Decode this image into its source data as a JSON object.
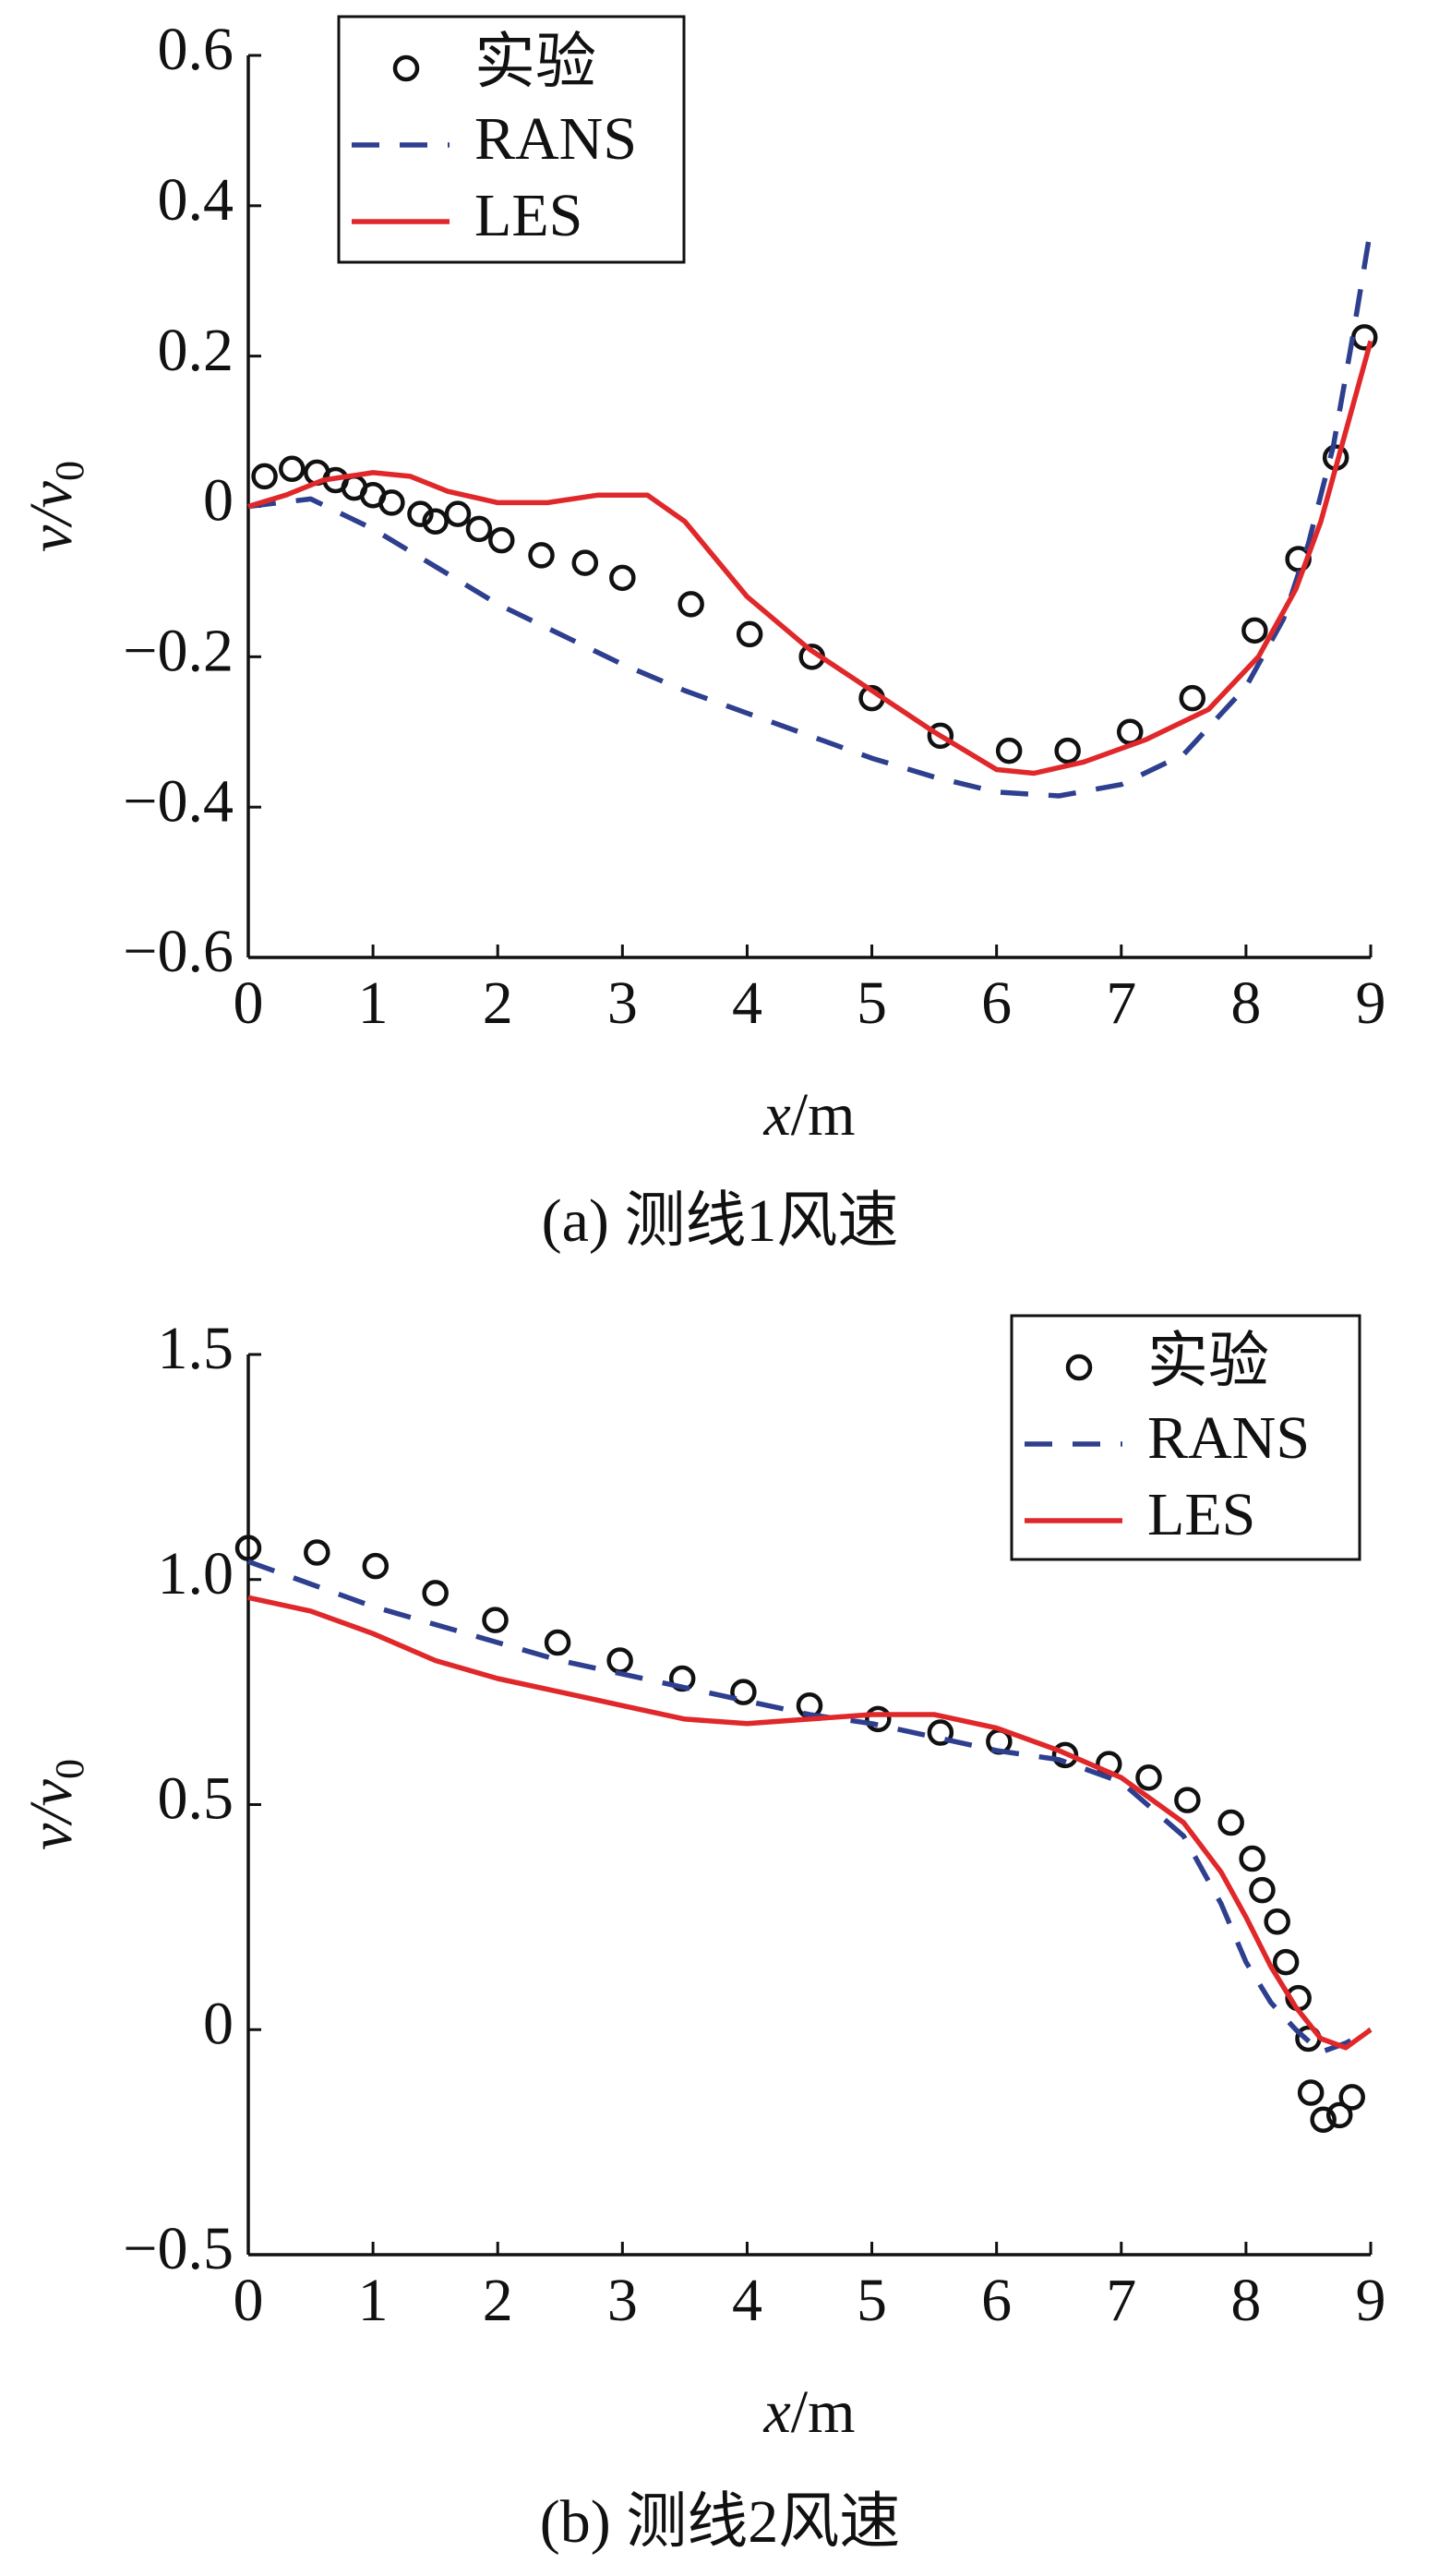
{
  "chart_data": [
    {
      "type": "line",
      "caption": "(a) 测线1风速",
      "xlabel": "x/m",
      "ylabel": "v/v0",
      "xlim": [
        0,
        9
      ],
      "xticks": [
        0,
        1,
        2,
        3,
        4,
        5,
        6,
        7,
        8,
        9
      ],
      "ylim": [
        -0.6,
        0.6
      ],
      "yticks": [
        {
          "value": -0.6,
          "label": "−0.6"
        },
        {
          "value": -0.4,
          "label": "−0.4"
        },
        {
          "value": -0.2,
          "label": "−0.2"
        },
        0,
        0.2,
        0.4,
        0.6
      ],
      "legend": "upper left",
      "series": [
        {
          "name": "实验",
          "kind": "scatter",
          "color": "#111111",
          "x": [
            0.13,
            0.35,
            0.55,
            0.7,
            0.85,
            1.0,
            1.15,
            1.38,
            1.5,
            1.68,
            1.85,
            2.03,
            2.35,
            2.7,
            3.0,
            3.55,
            4.02,
            4.52,
            5.0,
            5.55,
            6.1,
            6.57,
            7.07,
            7.57,
            8.07,
            8.42,
            8.72,
            8.95
          ],
          "values": [
            0.04,
            0.05,
            0.045,
            0.035,
            0.025,
            0.015,
            0.005,
            -0.01,
            -0.02,
            -0.01,
            -0.03,
            -0.045,
            -0.065,
            -0.075,
            -0.095,
            -0.13,
            -0.17,
            -0.2,
            -0.255,
            -0.305,
            -0.325,
            -0.325,
            -0.3,
            -0.255,
            -0.165,
            -0.07,
            0.065,
            0.225
          ]
        },
        {
          "name": "RANS",
          "kind": "dashed",
          "color": "#2e3f8f",
          "x": [
            0,
            0.5,
            1,
            1.5,
            2,
            2.5,
            3,
            3.5,
            4,
            4.5,
            5,
            5.5,
            6,
            6.5,
            7,
            7.5,
            8,
            8.3,
            8.5,
            8.7,
            8.85,
            9
          ],
          "values": [
            0,
            0.01,
            -0.03,
            -0.08,
            -0.13,
            -0.17,
            -0.21,
            -0.245,
            -0.275,
            -0.305,
            -0.335,
            -0.36,
            -0.38,
            -0.385,
            -0.37,
            -0.33,
            -0.24,
            -0.15,
            -0.05,
            0.08,
            0.22,
            0.37
          ]
        },
        {
          "name": "LES",
          "kind": "solid",
          "color": "#e0282a",
          "x": [
            0,
            0.3,
            0.6,
            1,
            1.3,
            1.6,
            2,
            2.4,
            2.8,
            3.2,
            3.5,
            4,
            4.5,
            5,
            5.5,
            6,
            6.3,
            6.7,
            7.2,
            7.7,
            8.1,
            8.4,
            8.6,
            8.8,
            9
          ],
          "values": [
            0,
            0.015,
            0.035,
            0.045,
            0.04,
            0.02,
            0.005,
            0.005,
            0.015,
            0.015,
            -0.02,
            -0.12,
            -0.19,
            -0.245,
            -0.3,
            -0.35,
            -0.355,
            -0.34,
            -0.31,
            -0.27,
            -0.2,
            -0.11,
            -0.02,
            0.1,
            0.22
          ]
        }
      ]
    },
    {
      "type": "line",
      "caption": "(b) 测线2风速",
      "xlabel": "x/m",
      "ylabel": "v/v0",
      "xlim": [
        0,
        9
      ],
      "xticks": [
        0,
        1,
        2,
        3,
        4,
        5,
        6,
        7,
        8,
        9
      ],
      "ylim": [
        -0.5,
        1.5
      ],
      "yticks": [
        {
          "value": -0.5,
          "label": "−0.5"
        },
        0,
        0.5,
        {
          "value": 1,
          "label": "1.0"
        },
        1.5
      ],
      "legend": "upper right",
      "series": [
        {
          "name": "实验",
          "kind": "scatter",
          "color": "#111111",
          "x": [
            0.0,
            0.55,
            1.02,
            1.5,
            1.98,
            2.48,
            2.98,
            3.48,
            3.97,
            4.5,
            5.05,
            5.55,
            6.02,
            6.55,
            6.9,
            7.22,
            7.53,
            7.88,
            8.05,
            8.13,
            8.25,
            8.32,
            8.42,
            8.5,
            8.52,
            8.62,
            8.75,
            8.85
          ],
          "values": [
            1.07,
            1.06,
            1.03,
            0.97,
            0.91,
            0.86,
            0.82,
            0.78,
            0.75,
            0.72,
            0.69,
            0.66,
            0.64,
            0.61,
            0.59,
            0.56,
            0.51,
            0.46,
            0.38,
            0.31,
            0.24,
            0.15,
            0.07,
            -0.02,
            -0.14,
            -0.2,
            -0.19,
            -0.15
          ]
        },
        {
          "name": "RANS",
          "kind": "dashed",
          "color": "#2e3f8f",
          "x": [
            0,
            0.5,
            1,
            1.5,
            2,
            2.5,
            3,
            3.5,
            4,
            4.5,
            5,
            5.5,
            6,
            6.5,
            7,
            7.5,
            7.8,
            8,
            8.2,
            8.4,
            8.6,
            8.8,
            9
          ],
          "values": [
            1.04,
            0.99,
            0.94,
            0.9,
            0.86,
            0.82,
            0.79,
            0.76,
            0.73,
            0.7,
            0.68,
            0.65,
            0.62,
            0.6,
            0.55,
            0.43,
            0.28,
            0.15,
            0.06,
            0.0,
            -0.05,
            -0.03,
            0.0
          ]
        },
        {
          "name": "LES",
          "kind": "solid",
          "color": "#e0282a",
          "x": [
            0,
            0.5,
            1,
            1.5,
            2,
            2.5,
            3,
            3.5,
            4,
            4.5,
            5,
            5.5,
            6,
            6.5,
            7,
            7.5,
            7.8,
            8,
            8.2,
            8.4,
            8.6,
            8.8,
            9
          ],
          "values": [
            0.96,
            0.93,
            0.88,
            0.82,
            0.78,
            0.75,
            0.72,
            0.69,
            0.68,
            0.69,
            0.7,
            0.7,
            0.67,
            0.62,
            0.56,
            0.46,
            0.35,
            0.25,
            0.14,
            0.05,
            -0.02,
            -0.04,
            0.0
          ]
        }
      ]
    }
  ]
}
